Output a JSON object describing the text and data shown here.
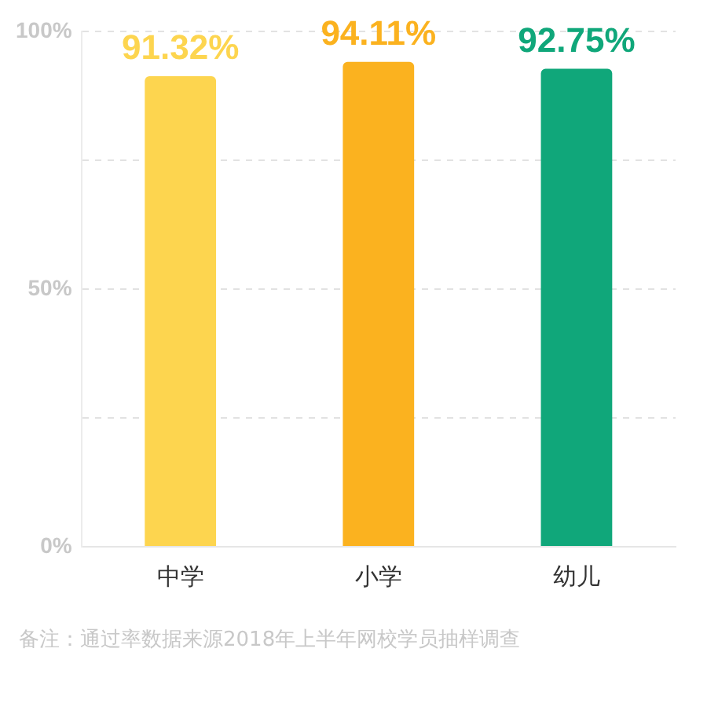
{
  "chart_data": {
    "type": "bar",
    "categories": [
      "中学",
      "小学",
      "幼儿"
    ],
    "values": [
      91.32,
      94.11,
      92.75
    ],
    "colors": [
      "#fdd54f",
      "#fbb21f",
      "#10a77a"
    ],
    "ylim": [
      0,
      100
    ],
    "yticks": [
      {
        "value": 0,
        "label": "0%"
      },
      {
        "value": 25,
        "label": null
      },
      {
        "value": 50,
        "label": "50%"
      },
      {
        "value": 75,
        "label": null
      },
      {
        "value": 100,
        "label": "100%"
      }
    ],
    "value_labels": [
      "91.32%",
      "94.11%",
      "92.75%"
    ],
    "grid": "y",
    "legend": false,
    "annotations": [
      "备注：通过率数据来源2018年上半年网校学员抽样调查"
    ]
  }
}
